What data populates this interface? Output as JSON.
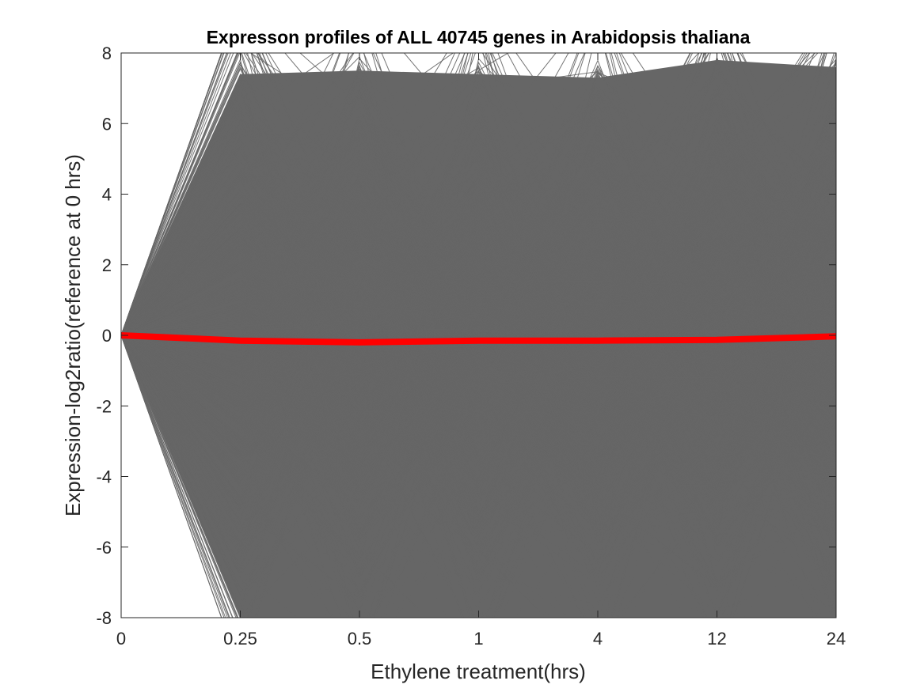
{
  "chart_data": {
    "type": "line",
    "title": "Expresson profiles of ALL 40745 genes in Arabidopsis thaliana",
    "xlabel": "Ethylene treatment(hrs)",
    "ylabel": "Expression-log2ratio(reference at 0 hrs)",
    "categories": [
      "0",
      "0.25",
      "0.5",
      "1",
      "4",
      "12",
      "24"
    ],
    "ylim": [
      -8,
      8
    ],
    "yticks": [
      -8,
      -6,
      -4,
      -2,
      0,
      2,
      4,
      6,
      8
    ],
    "grid": false,
    "legend": "none",
    "gene_count": 40745,
    "series": [
      {
        "role": "individual gene profiles",
        "color": "#666666",
        "band_upper": [
          0,
          7.4,
          7.5,
          7.4,
          7.3,
          7.8,
          7.6
        ],
        "band_lower": [
          0,
          -8,
          -8,
          -8,
          -8,
          -8,
          -8
        ]
      },
      {
        "role": "mean profile",
        "color": "#ff0000",
        "values": [
          0,
          -0.15,
          -0.2,
          -0.15,
          -0.15,
          -0.13,
          -0.03
        ]
      }
    ]
  }
}
